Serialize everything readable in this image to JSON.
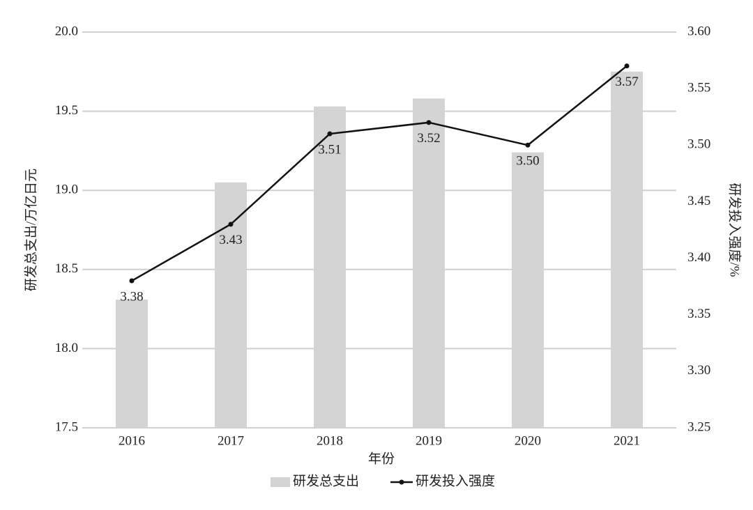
{
  "chart_data": {
    "type": "bar-line",
    "x_label": "年份",
    "y_label": "研发总支出/万亿日元",
    "y2_label": "研发投入强度/%",
    "categories": [
      "2016",
      "2017",
      "2018",
      "2019",
      "2020",
      "2021"
    ],
    "series": [
      {
        "name": "研发总支出",
        "type": "bar",
        "color": "#d4d4d4",
        "values": [
          18.31,
          19.05,
          19.53,
          19.58,
          19.24,
          19.75
        ]
      },
      {
        "name": "研发投入强度",
        "type": "line",
        "axis": "y2",
        "color": "#111111",
        "values": [
          3.38,
          3.43,
          3.51,
          3.52,
          3.5,
          3.57
        ],
        "value_labels": [
          "3.38",
          "3.43",
          "3.51",
          "3.52",
          "3.50",
          "3.57"
        ]
      }
    ],
    "ylim": [
      17.5,
      20
    ],
    "yticks": [
      17.5,
      {
        "value": 18,
        "label": "18.0"
      },
      18.5,
      {
        "value": 19,
        "label": "19.0"
      },
      19.5,
      {
        "value": 20,
        "label": "20.0"
      }
    ],
    "y2lim": [
      3.25,
      3.6
    ],
    "y2ticks": [
      3.25,
      {
        "value": 3.3,
        "label": "3.30"
      },
      3.35,
      {
        "value": 3.4,
        "label": "3.40"
      },
      3.45,
      {
        "value": 3.5,
        "label": "3.50"
      },
      3.55,
      {
        "value": 3.6,
        "label": "3.60"
      }
    ],
    "grid": true
  }
}
